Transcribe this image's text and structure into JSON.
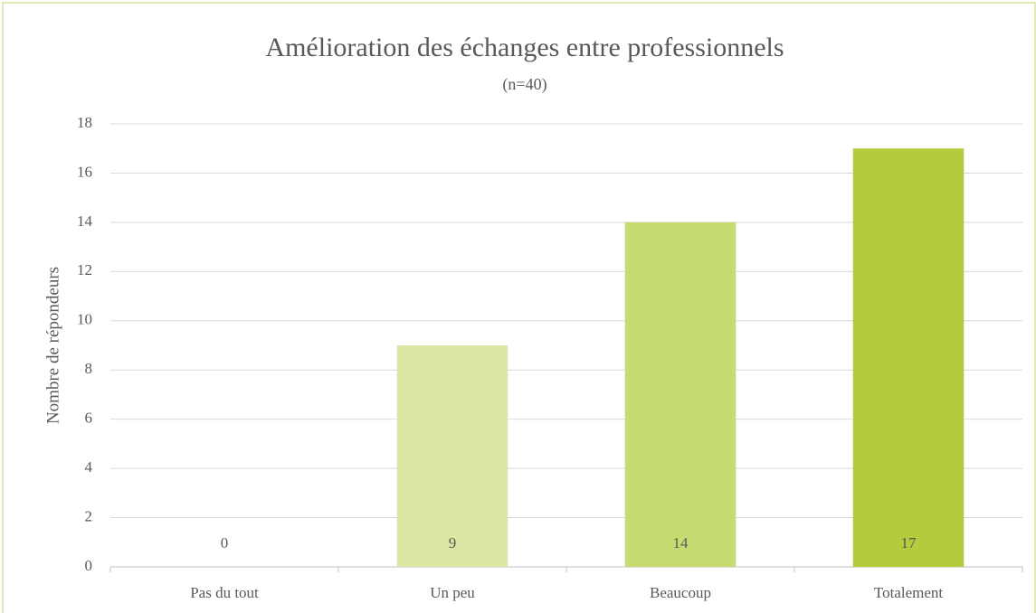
{
  "chart_data": {
    "type": "bar",
    "title": "Amélioration des échanges entre professionnels",
    "subtitle": "(n=40)",
    "y_label": "Nombre de répondeurs",
    "categories": [
      "Pas du tout",
      "Un peu",
      "Beaucoup",
      "Totalement"
    ],
    "values": [
      0,
      9,
      14,
      17
    ],
    "colors": [
      "#e8f0c8",
      "#dae7a3",
      "#c6dc71",
      "#b3cc3e"
    ],
    "ylim": [
      0,
      18
    ],
    "yticks": [
      0,
      2,
      4,
      6,
      8,
      10,
      12,
      14,
      16,
      18
    ],
    "grid": true
  }
}
